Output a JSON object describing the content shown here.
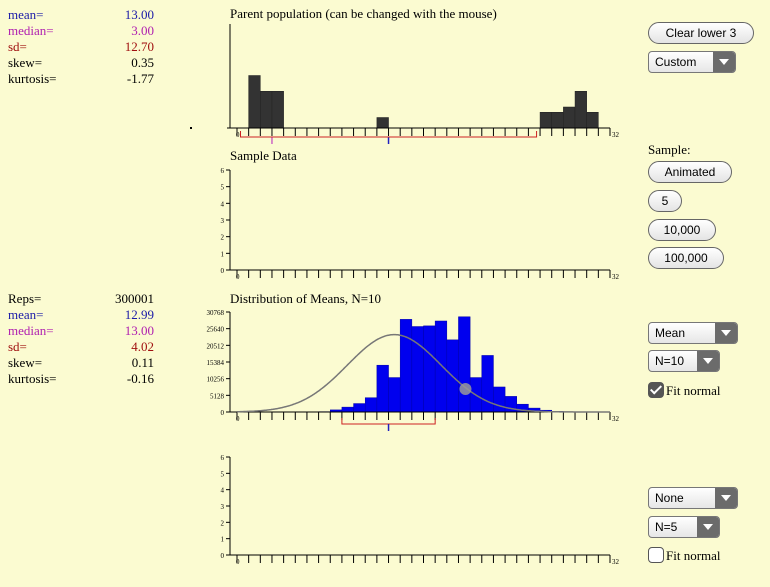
{
  "population_stats": [
    {
      "label": "mean=",
      "value": "13.00",
      "color": "#1a1aa8"
    },
    {
      "label": "median=",
      "value": "3.00",
      "color": "#b020b0"
    },
    {
      "label": "sd=",
      "value": "12.70",
      "color": "#a01010"
    },
    {
      "label": "skew=",
      "value": "0.35",
      "color": "#000000"
    },
    {
      "label": "kurtosis=",
      "value": "-1.77",
      "color": "#000000"
    }
  ],
  "means_stats": [
    {
      "label": "Reps=",
      "value": "300001",
      "color": "#000000"
    },
    {
      "label": "mean=",
      "value": "12.99",
      "color": "#1a1aa8"
    },
    {
      "label": "median=",
      "value": "13.00",
      "color": "#b020b0"
    },
    {
      "label": "sd=",
      "value": "4.02",
      "color": "#a01010"
    },
    {
      "label": "skew=",
      "value": "0.11",
      "color": "#000000"
    },
    {
      "label": "kurtosis=",
      "value": "-0.16",
      "color": "#000000"
    }
  ],
  "panels": {
    "parent_title": "Parent population (can be changed with the mouse)",
    "sample_title": "Sample Data",
    "means_title": "Distribution of Means, N=10"
  },
  "controls": {
    "clear_button": "Clear lower 3",
    "population_select": "Custom",
    "sample_label": "Sample:",
    "animated_button": "Animated",
    "btn_5": "5",
    "btn_10000": "10,000",
    "btn_100000": "100,000",
    "stat_select_3": "Mean",
    "n_select_3": "N=10",
    "fit_normal_3": "Fit normal",
    "fit_normal_3_checked": true,
    "stat_select_4": "None",
    "n_select_4": "N=5",
    "fit_normal_4": "Fit normal",
    "fit_normal_4_checked": false
  },
  "axis": {
    "x_min_label": "0",
    "x_max_label": "32",
    "sample_y_ticks": [
      "0",
      "1",
      "2",
      "3",
      "4",
      "5",
      "6"
    ],
    "means_y_ticks": [
      "0",
      "5128",
      "10256",
      "15384",
      "20512",
      "25640",
      "30768"
    ]
  },
  "colors": {
    "background": "#fbfbd1",
    "parent_bar": "#333333",
    "means_bar": "#0000ee",
    "mean_marker": "#2020c0",
    "median_marker": "#c040c0",
    "sd_bracket": "#cc2222",
    "normal_curve": "#777777"
  },
  "chart_data": [
    {
      "type": "bar",
      "title": "Parent population (can be changed with the mouse)",
      "x": [
        0,
        1,
        2,
        3,
        4,
        5,
        6,
        7,
        8,
        9,
        10,
        11,
        12,
        13,
        14,
        15,
        16,
        17,
        18,
        19,
        20,
        21,
        22,
        23,
        24,
        25,
        26,
        27,
        28,
        29,
        30,
        31
      ],
      "values": [
        0,
        5,
        3.5,
        3.5,
        0,
        0,
        0,
        0,
        0,
        0,
        0,
        0,
        1,
        0,
        0,
        0,
        0,
        0,
        0,
        0,
        0,
        0,
        0,
        0,
        0,
        0,
        1.5,
        1.5,
        2,
        3.5,
        1.5,
        0
      ],
      "xlim": [
        0,
        32
      ]
    },
    {
      "type": "bar",
      "title": "Sample Data",
      "x": [],
      "values": [],
      "xlim": [
        0,
        32
      ],
      "ylim": [
        0,
        6
      ]
    },
    {
      "type": "bar",
      "title": "Distribution of Means, N=10",
      "x": [
        0,
        1,
        2,
        3,
        4,
        5,
        6,
        7,
        8,
        9,
        10,
        11,
        12,
        13,
        14,
        15,
        16,
        17,
        18,
        19,
        20,
        21,
        22,
        23,
        24,
        25,
        26,
        27,
        28,
        29,
        30,
        31
      ],
      "values": [
        0,
        0,
        0,
        0,
        0,
        0,
        0,
        100,
        650,
        1500,
        2600,
        4400,
        14400,
        10600,
        28500,
        26300,
        26500,
        28000,
        22200,
        29300,
        10600,
        17400,
        7700,
        4800,
        2400,
        1200,
        550,
        200,
        50,
        0,
        0,
        0
      ],
      "xlim": [
        0,
        32
      ],
      "ylim": [
        0,
        30768
      ],
      "normal_fit": {
        "mean": 12.99,
        "sd": 4.02
      }
    }
  ]
}
